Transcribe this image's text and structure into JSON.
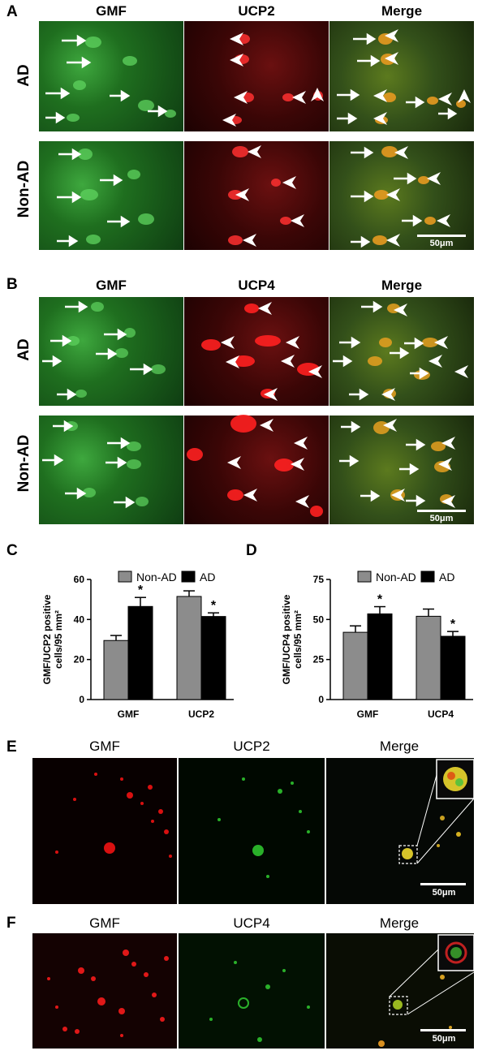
{
  "panel_a": {
    "letter": "A",
    "columns": [
      "GMF",
      "UCP2",
      "Merge"
    ],
    "rows": [
      "AD",
      "Non-AD"
    ],
    "scale": "50μm"
  },
  "panel_b": {
    "letter": "B",
    "columns": [
      "GMF",
      "UCP4",
      "Merge"
    ],
    "rows": [
      "AD",
      "Non-AD"
    ],
    "scale": "50μm"
  },
  "panel_e": {
    "letter": "E",
    "columns": [
      "GMF",
      "UCP2",
      "Merge"
    ],
    "scale": "50μm"
  },
  "panel_f": {
    "letter": "F",
    "columns": [
      "GMF",
      "UCP4",
      "Merge"
    ],
    "scale": "50μm"
  },
  "chart_data": [
    {
      "letter": "C",
      "type": "bar",
      "categories": [
        "GMF",
        "UCP2"
      ],
      "ylabel": "GMF/UCP2 positive cells/95 mm²",
      "ylim": [
        0,
        60
      ],
      "yticks": [
        "0",
        "20",
        "40",
        "60"
      ],
      "legend_position": "top",
      "series": [
        {
          "name": "Non-AD",
          "values": [
            29.5,
            51.5
          ],
          "errors": [
            2.5,
            2.8
          ],
          "color": "#8c8c8c"
        },
        {
          "name": "AD",
          "values": [
            46.5,
            41.5
          ],
          "errors": [
            4.5,
            1.8
          ],
          "color": "#000000"
        }
      ],
      "significance": [
        "*",
        "*"
      ]
    },
    {
      "letter": "D",
      "type": "bar",
      "categories": [
        "GMF",
        "UCP4"
      ],
      "ylabel": "GMF/UCP4 positive cells/95 mm²",
      "ylim": [
        0,
        75
      ],
      "yticks": [
        "0",
        "25",
        "50",
        "75"
      ],
      "legend_position": "top",
      "series": [
        {
          "name": "Non-AD",
          "values": [
            42,
            52
          ],
          "errors": [
            4,
            4.5
          ],
          "color": "#8c8c8c"
        },
        {
          "name": "AD",
          "values": [
            53.5,
            39.5
          ],
          "errors": [
            4.5,
            3
          ],
          "color": "#000000"
        }
      ],
      "significance": [
        "*",
        "*"
      ]
    }
  ]
}
